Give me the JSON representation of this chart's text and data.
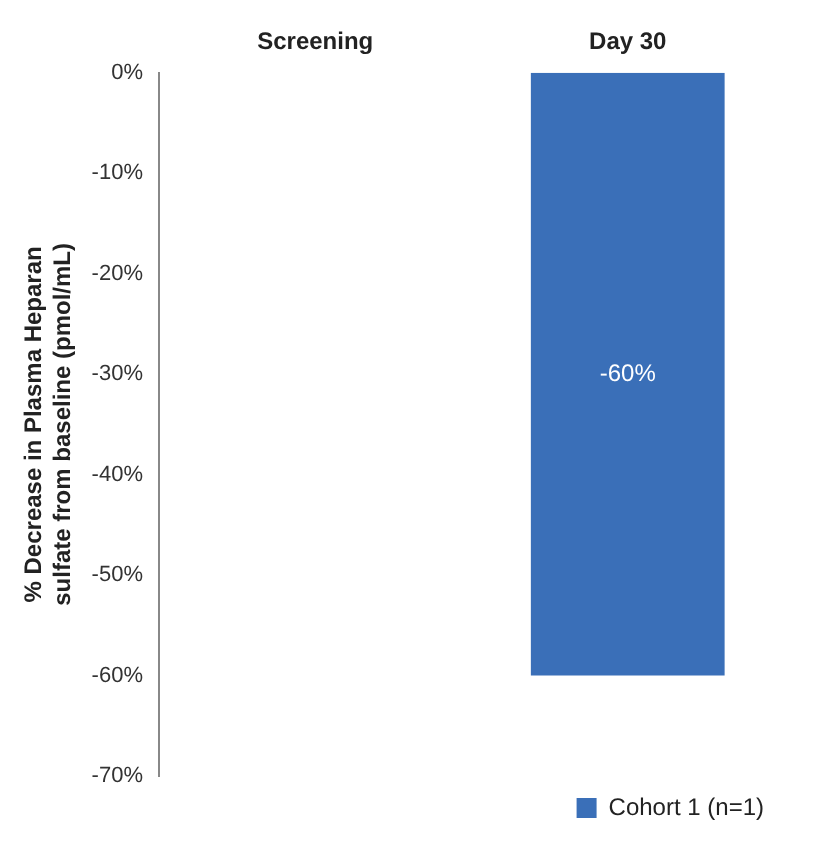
{
  "chart_data": {
    "type": "bar",
    "ylabel": "% Decrease in Plasma Heparan sulfate from baseline (pmol/mL)",
    "categories": [
      "Screening",
      "Day 30"
    ],
    "series": [
      {
        "name": "Cohort 1 (n=1)",
        "color": "#3a6fb8",
        "values": [
          0,
          -60
        ],
        "value_labels": [
          null,
          "-60%"
        ]
      }
    ],
    "ylim": [
      -70,
      0
    ],
    "yticks": [
      {
        "value": 0,
        "label": "0%"
      },
      {
        "value": -10,
        "label": "-10%"
      },
      {
        "value": -20,
        "label": "-20%"
      },
      {
        "value": -30,
        "label": "-30%"
      },
      {
        "value": -40,
        "label": "-40%"
      },
      {
        "value": -50,
        "label": "-50%"
      },
      {
        "value": -60,
        "label": "-60%"
      },
      {
        "value": -70,
        "label": "-70%"
      }
    ],
    "grid": false,
    "legend": "bottom right"
  }
}
